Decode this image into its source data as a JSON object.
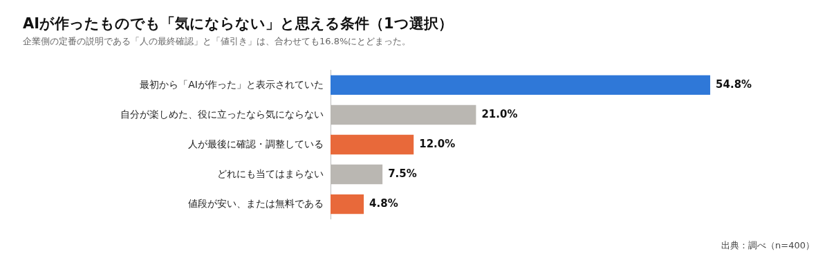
{
  "chart_data": {
    "type": "bar",
    "orientation": "horizontal",
    "title": "AIが作ったものでも「気にならない」と思える条件（1つ選択）",
    "subtitle": "企業側の定番の説明である「人の最終確認」と「値引き」は、合わせても16.8%にとどまった。",
    "categories": [
      "最初から「AIが作った」と表示されていた",
      "自分が楽しめた、役に立ったなら気にならない",
      "人が最後に確認・調整している",
      "どれにも当てはまらない",
      "値段が安い、または無料である"
    ],
    "values": [
      54.8,
      21.0,
      12.0,
      7.5,
      4.8
    ],
    "colors": [
      "#2f78d8",
      "#bab7b2",
      "#e8693a",
      "#bab7b2",
      "#e8693a"
    ],
    "value_labels": [
      "54.8%",
      "21.0%",
      "12.0%",
      "7.5%",
      "4.8%"
    ],
    "annotations": [
      "出典：調べ（n=400）"
    ]
  }
}
